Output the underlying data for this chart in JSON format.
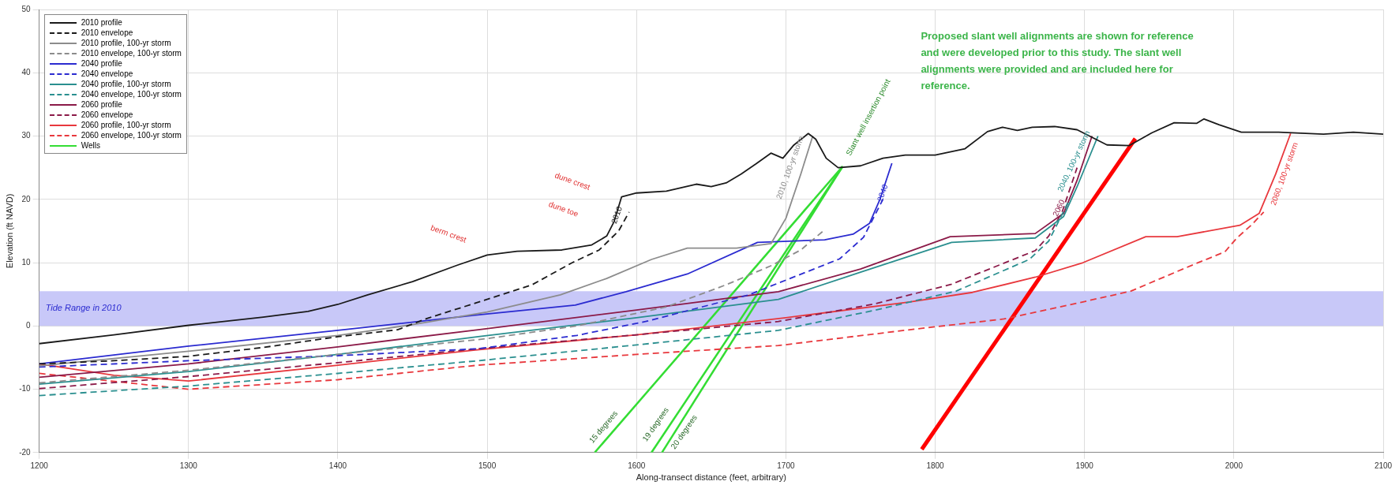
{
  "chart_data": {
    "type": "line",
    "xlabel": "Along-transect distance (feet, arbitrary)",
    "ylabel": "Elevation (ft NAVD)",
    "xlim": [
      1200,
      2100
    ],
    "xticks": [
      1200,
      1300,
      1400,
      1500,
      1600,
      1700,
      1800,
      1900,
      2000,
      2100
    ],
    "ylim": [
      -20,
      50
    ],
    "yticks": [
      -20,
      -10,
      0,
      10,
      20,
      30,
      40,
      50
    ],
    "grid": true,
    "legend": "top left",
    "series": [
      {
        "name": "2010 profile",
        "color": "#1a1a1a",
        "x": [
          1200,
          1250,
          1300,
          1350,
          1380,
          1400,
          1420,
          1450,
          1480,
          1500,
          1520,
          1550,
          1570,
          1580,
          1585,
          1590,
          1600,
          1620,
          1640,
          1650,
          1660,
          1670,
          1680,
          1690,
          1698,
          1705,
          1715,
          1720,
          1727,
          1735,
          1750,
          1765,
          1780,
          1800,
          1820,
          1835,
          1845,
          1855,
          1865,
          1880,
          1895,
          1915,
          1930,
          1945,
          1960,
          1975,
          1980,
          1990,
          2005,
          2030,
          2060,
          2080,
          2100
        ],
        "values": [
          -2.8,
          -1.4,
          0.1,
          1.4,
          2.3,
          3.4,
          4.9,
          7,
          9.6,
          11.2,
          11.8,
          12,
          12.8,
          14.2,
          16.5,
          20.4,
          21,
          21.3,
          22.4,
          22,
          22.6,
          24,
          25.6,
          27.3,
          26.5,
          28.5,
          30.4,
          29.5,
          26.5,
          25,
          25.3,
          26.5,
          27,
          27,
          28,
          30.7,
          31.4,
          30.9,
          31.4,
          31.5,
          31,
          28.6,
          28.5,
          30.5,
          32.1,
          32,
          32.7,
          31.8,
          30.6,
          30.6,
          30.3,
          30.6,
          30.3
        ]
      },
      {
        "name": "2010 envelope",
        "color": "#1a1a1a",
        "line_style": "dashed",
        "x": [
          1200,
          1250,
          1300,
          1350,
          1400,
          1440,
          1460,
          1492,
          1530,
          1557,
          1575,
          1588,
          1595
        ],
        "values": [
          -6,
          -5.5,
          -4.8,
          -3.4,
          -1.7,
          -0.6,
          1.2,
          3.6,
          6.5,
          10,
          12,
          15,
          18
        ]
      },
      {
        "name": "2010 profile, 100-yr storm",
        "color": "#8c8c8c",
        "x": [
          1200,
          1300,
          1400,
          1450,
          1500,
          1549,
          1580,
          1610,
          1634,
          1667,
          1690,
          1700,
          1710,
          1718
        ],
        "values": [
          -6.3,
          -4,
          -1.5,
          0.2,
          2.2,
          4.9,
          7.5,
          10.5,
          12.3,
          12.3,
          13,
          17,
          24,
          30
        ]
      },
      {
        "name": "2010 envelope, 100-yr storm",
        "color": "#8c8c8c",
        "line_style": "dashed",
        "x": [
          1200,
          1300,
          1400,
          1500,
          1560,
          1600,
          1620,
          1660,
          1690,
          1710,
          1725
        ],
        "values": [
          -9,
          -7,
          -4.5,
          -2,
          0,
          2,
          3,
          6.5,
          9.5,
          12,
          15
        ]
      },
      {
        "name": "2040 profile",
        "color": "#2b2bd0",
        "x": [
          1200,
          1300,
          1400,
          1492,
          1559,
          1593,
          1634,
          1681,
          1726,
          1745,
          1756,
          1763,
          1771
        ],
        "values": [
          -6,
          -3.2,
          -0.7,
          1.7,
          3.3,
          5.4,
          8.2,
          13.2,
          13.6,
          14.5,
          16.2,
          20,
          25.7
        ]
      },
      {
        "name": "2040 envelope",
        "color": "#2b2bd0",
        "line_style": "dashed",
        "x": [
          1200,
          1300,
          1400,
          1494,
          1560,
          1606,
          1675,
          1736,
          1752,
          1765
        ],
        "values": [
          -6.5,
          -5.5,
          -4.7,
          -3.6,
          -1.5,
          0.7,
          4.9,
          10.6,
          14,
          20
        ]
      },
      {
        "name": "2040 profile, 100-yr storm",
        "color": "#2a8f8f",
        "x": [
          1200,
          1300,
          1400,
          1494,
          1600,
          1695,
          1750,
          1811,
          1867,
          1886,
          1895,
          1909
        ],
        "values": [
          -9.2,
          -7.2,
          -4.5,
          -1.7,
          1.3,
          4.2,
          8.5,
          13.2,
          13.9,
          17.3,
          22,
          30
        ]
      },
      {
        "name": "2040 envelope, 100-yr storm",
        "color": "#2a8f8f",
        "line_style": "dashed",
        "x": [
          1200,
          1300,
          1400,
          1494,
          1600,
          1695,
          1760,
          1814,
          1863,
          1876,
          1890
        ],
        "values": [
          -11,
          -9.5,
          -7.5,
          -5.5,
          -3,
          -0.7,
          2.5,
          5.5,
          10.5,
          13.4,
          20
        ]
      },
      {
        "name": "2060 profile",
        "color": "#8b1a48",
        "x": [
          1200,
          1300,
          1400,
          1494,
          1600,
          1695,
          1750,
          1810,
          1867,
          1886,
          1895,
          1905
        ],
        "values": [
          -8.1,
          -6,
          -3.3,
          -0.6,
          2.5,
          5.4,
          9,
          14.1,
          14.6,
          17.8,
          23,
          30
        ]
      },
      {
        "name": "2060 envelope",
        "color": "#8b1a48",
        "line_style": "dashed",
        "x": [
          1200,
          1300,
          1400,
          1494,
          1600,
          1695,
          1760,
          1811,
          1867,
          1876,
          1885,
          1895
        ],
        "values": [
          -9.9,
          -8,
          -5.8,
          -3.6,
          -1.4,
          0.7,
          3.5,
          6.6,
          11.9,
          14.2,
          18,
          25
        ]
      },
      {
        "name": "2060 profile, 100-yr storm",
        "color": "#e8383d",
        "x": [
          1200,
          1250,
          1300,
          1400,
          1492,
          1600,
          1700,
          1783,
          1825,
          1867,
          1899,
          1941,
          1962,
          2004,
          2017,
          2028,
          2038
        ],
        "values": [
          -6,
          -7.8,
          -8.7,
          -6.2,
          -3.8,
          -1.4,
          1.3,
          3.8,
          5.3,
          7.7,
          10,
          14.1,
          14.1,
          15.9,
          17.8,
          24,
          30.4
        ]
      },
      {
        "name": "2060 envelope, 100-yr storm",
        "color": "#e8383d",
        "line_style": "dashed",
        "x": [
          1200,
          1300,
          1400,
          1494,
          1600,
          1695,
          1783,
          1846,
          1899,
          1931,
          1973,
          1994,
          2002,
          2012,
          2020
        ],
        "values": [
          -7.5,
          -10,
          -8.5,
          -6.2,
          -4.5,
          -3.1,
          -0.6,
          1.1,
          3.8,
          5.5,
          9.7,
          11.7,
          13.9,
          16,
          18
        ]
      },
      {
        "name": "Wells",
        "color": "#33dd33",
        "x": [
          1738,
          1572
        ],
        "values": [
          25.2,
          -20
        ]
      },
      {
        "color": "#33dd33",
        "x": [
          1738,
          1610
        ],
        "values": [
          25.2,
          -20
        ]
      },
      {
        "color": "#33dd33",
        "x": [
          1738,
          1617
        ],
        "values": [
          25.2,
          -20
        ]
      },
      {
        "color": "#ff0000",
        "x": [
          1791,
          1934
        ],
        "values": [
          -19.5,
          29.6
        ]
      }
    ],
    "bands": [
      {
        "axis": "y",
        "from": 0,
        "to": 5.5,
        "label": "Tide Range in 2010",
        "color": "#c8c8f8"
      }
    ],
    "annotations": [
      "Proposed slant well alignments are shown for reference and were developed prior to this study. The slant well alignments were provided and are included here for reference.",
      "berm crest",
      "dune crest",
      "dune toe",
      {
        "text": "2010",
        "x": 1587,
        "y": 17.5
      },
      "2010, 100-yr storm",
      {
        "text": "2040",
        "x": 1765,
        "y": 21
      },
      {
        "text": "2060",
        "x": 1883,
        "y": 18.6
      },
      "2040, 100-yr storm",
      "2060, 100-yr storm",
      "Slant well insertion point",
      "15 degrees",
      "19 degrees",
      "20 degrees"
    ]
  }
}
